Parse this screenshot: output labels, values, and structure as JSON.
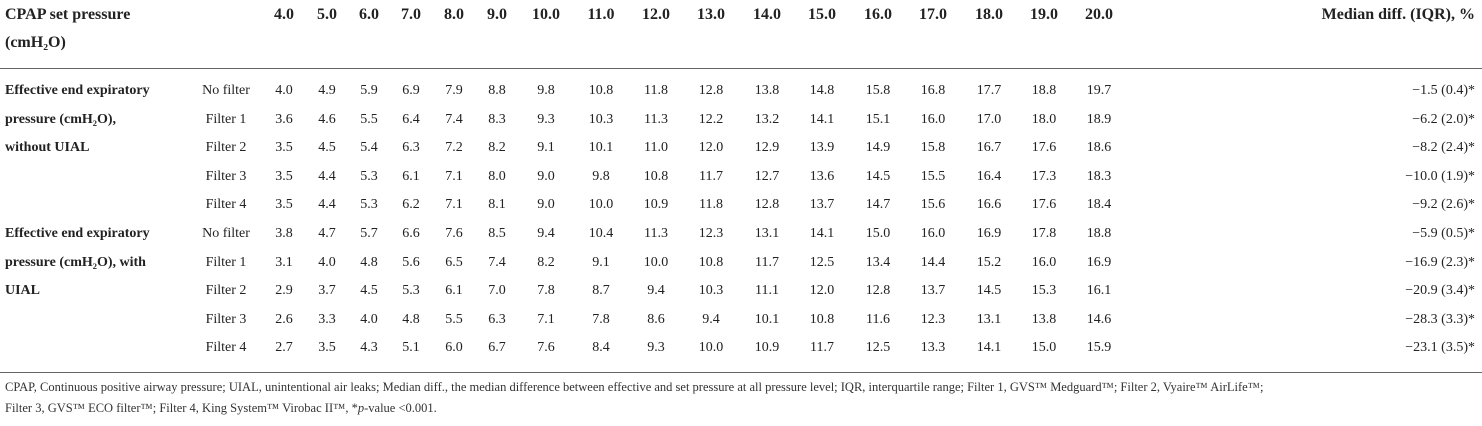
{
  "header": {
    "label_lines": [
      "CPAP set pressure",
      "(cmH₂O)"
    ],
    "set_pressures": [
      "4.0",
      "5.0",
      "6.0",
      "7.0",
      "8.0",
      "9.0",
      "10.0",
      "11.0",
      "12.0",
      "13.0",
      "14.0",
      "15.0",
      "16.0",
      "17.0",
      "18.0",
      "19.0",
      "20.0"
    ],
    "summary": "Median diff. (IQR), %"
  },
  "groups": [
    {
      "label_lines": [
        "Effective end expiratory",
        "pressure (cmH₂O),",
        "without UIAL"
      ],
      "rows": [
        {
          "filter": "No filter",
          "values": [
            "4.0",
            "4.9",
            "5.9",
            "6.9",
            "7.9",
            "8.8",
            "9.8",
            "10.8",
            "11.8",
            "12.8",
            "13.8",
            "14.8",
            "15.8",
            "16.8",
            "17.7",
            "18.8",
            "19.7"
          ],
          "median": "−1.5 (0.4)*"
        },
        {
          "filter": "Filter 1",
          "values": [
            "3.6",
            "4.6",
            "5.5",
            "6.4",
            "7.4",
            "8.3",
            "9.3",
            "10.3",
            "11.3",
            "12.2",
            "13.2",
            "14.1",
            "15.1",
            "16.0",
            "17.0",
            "18.0",
            "18.9"
          ],
          "median": "−6.2 (2.0)*"
        },
        {
          "filter": "Filter 2",
          "values": [
            "3.5",
            "4.5",
            "5.4",
            "6.3",
            "7.2",
            "8.2",
            "9.1",
            "10.1",
            "11.0",
            "12.0",
            "12.9",
            "13.9",
            "14.9",
            "15.8",
            "16.7",
            "17.6",
            "18.6"
          ],
          "median": "−8.2 (2.4)*"
        },
        {
          "filter": "Filter 3",
          "values": [
            "3.5",
            "4.4",
            "5.3",
            "6.1",
            "7.1",
            "8.0",
            "9.0",
            "9.8",
            "10.8",
            "11.7",
            "12.7",
            "13.6",
            "14.5",
            "15.5",
            "16.4",
            "17.3",
            "18.3"
          ],
          "median": "−10.0 (1.9)*"
        },
        {
          "filter": "Filter 4",
          "values": [
            "3.5",
            "4.4",
            "5.3",
            "6.2",
            "7.1",
            "8.1",
            "9.0",
            "10.0",
            "10.9",
            "11.8",
            "12.8",
            "13.7",
            "14.7",
            "15.6",
            "16.6",
            "17.6",
            "18.4"
          ],
          "median": "−9.2 (2.6)*"
        }
      ]
    },
    {
      "label_lines": [
        "Effective end expiratory",
        "pressure (cmH₂O), with",
        "UIAL"
      ],
      "rows": [
        {
          "filter": "No filter",
          "values": [
            "3.8",
            "4.7",
            "5.7",
            "6.6",
            "7.6",
            "8.5",
            "9.4",
            "10.4",
            "11.3",
            "12.3",
            "13.1",
            "14.1",
            "15.0",
            "16.0",
            "16.9",
            "17.8",
            "18.8"
          ],
          "median": "−5.9 (0.5)*"
        },
        {
          "filter": "Filter 1",
          "values": [
            "3.1",
            "4.0",
            "4.8",
            "5.6",
            "6.5",
            "7.4",
            "8.2",
            "9.1",
            "10.0",
            "10.8",
            "11.7",
            "12.5",
            "13.4",
            "14.4",
            "15.2",
            "16.0",
            "16.9"
          ],
          "median": "−16.9 (2.3)*"
        },
        {
          "filter": "Filter 2",
          "values": [
            "2.9",
            "3.7",
            "4.5",
            "5.3",
            "6.1",
            "7.0",
            "7.8",
            "8.7",
            "9.4",
            "10.3",
            "11.1",
            "12.0",
            "12.8",
            "13.7",
            "14.5",
            "15.3",
            "16.1"
          ],
          "median": "−20.9 (3.4)*"
        },
        {
          "filter": "Filter 3",
          "values": [
            "2.6",
            "3.3",
            "4.0",
            "4.8",
            "5.5",
            "6.3",
            "7.1",
            "7.8",
            "8.6",
            "9.4",
            "10.1",
            "10.8",
            "11.6",
            "12.3",
            "13.1",
            "13.8",
            "14.6"
          ],
          "median": "−28.3 (3.3)*"
        },
        {
          "filter": "Filter 4",
          "values": [
            "2.7",
            "3.5",
            "4.3",
            "5.1",
            "6.0",
            "6.7",
            "7.6",
            "8.4",
            "9.3",
            "10.0",
            "10.9",
            "11.7",
            "12.5",
            "13.3",
            "14.1",
            "15.0",
            "15.9"
          ],
          "median": "−23.1 (3.5)*"
        }
      ]
    }
  ],
  "footnote": {
    "lines": [
      [
        {
          "text": "CPAP, Continuous positive airway pressure; UIAL, unintentional air leaks; Median diff., the median difference between effective and set pressure at all pressure level; IQR, interquartile range; Filter 1, GVS™ Medguard™; Filter 2, Vyaire™ AirLife™;",
          "italic": false
        }
      ],
      [
        {
          "text": "Filter 3, GVS™ ECO filter™; Filter 4, King System™ Virobac II™, *",
          "italic": false
        },
        {
          "text": "p",
          "italic": true
        },
        {
          "text": "-value <0.001.",
          "italic": false
        }
      ]
    ]
  }
}
